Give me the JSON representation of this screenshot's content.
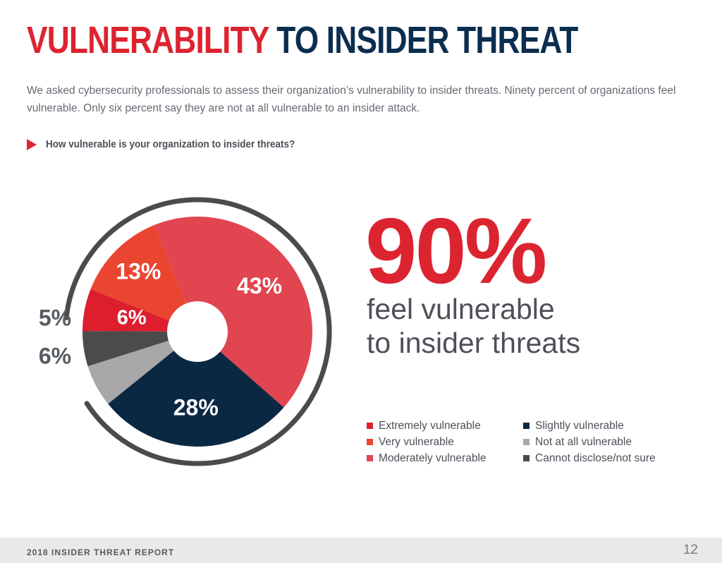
{
  "header": {
    "title_red": "VULNERABILITY",
    "title_navy": "TO INSIDER THREAT",
    "intro": "We asked cybersecurity professionals to assess their organization’s vulnerability to insider threats. Ninety percent of organizations feel vulnerable.  Only six percent say they are not at all vulnerable to an insider attack.",
    "question": "How vulnerable is your organization to insider threats?"
  },
  "highlight": {
    "value": "90%",
    "caption_line1": "feel vulnerable",
    "caption_line2": "to insider threats"
  },
  "footer": {
    "report": "2018 INSIDER THREAT REPORT",
    "page": "12"
  },
  "colors": {
    "brand_red": "#dc2430",
    "brand_navy": "#0b2e4f"
  },
  "chart_data": {
    "type": "pie",
    "style": "donut",
    "title": "How vulnerable is your organization to insider threats?",
    "slices": [
      {
        "label": "Moderately vulnerable",
        "value": 43,
        "display": "43%",
        "color": "#e04550"
      },
      {
        "label": "Slightly vulnerable",
        "value": 28,
        "display": "28%",
        "color": "#0b2843"
      },
      {
        "label": "Not at all vulnerable",
        "value": 6,
        "display": "6%",
        "color": "#a8a8a8"
      },
      {
        "label": "Cannot disclose/not sure",
        "value": 5,
        "display": "5%",
        "color": "#4b4b4d"
      },
      {
        "label": "Extremely vulnerable",
        "value": 6,
        "display": "6%",
        "color": "#dc1e2d"
      },
      {
        "label": "Very vulnerable",
        "value": 13,
        "display": "13%",
        "color": "#ea4530"
      }
    ],
    "legend": [
      {
        "label": "Extremely vulnerable",
        "color": "#dc1e2d"
      },
      {
        "label": "Slightly vulnerable",
        "color": "#0b2843"
      },
      {
        "label": "Very vulnerable",
        "color": "#ea4530"
      },
      {
        "label": "Not at all vulnerable",
        "color": "#a8a8a8"
      },
      {
        "label": "Moderately vulnerable",
        "color": "#e04550"
      },
      {
        "label": "Cannot disclose/not sure",
        "color": "#4b4b4d"
      }
    ],
    "legend_placement": "bottom-right"
  }
}
